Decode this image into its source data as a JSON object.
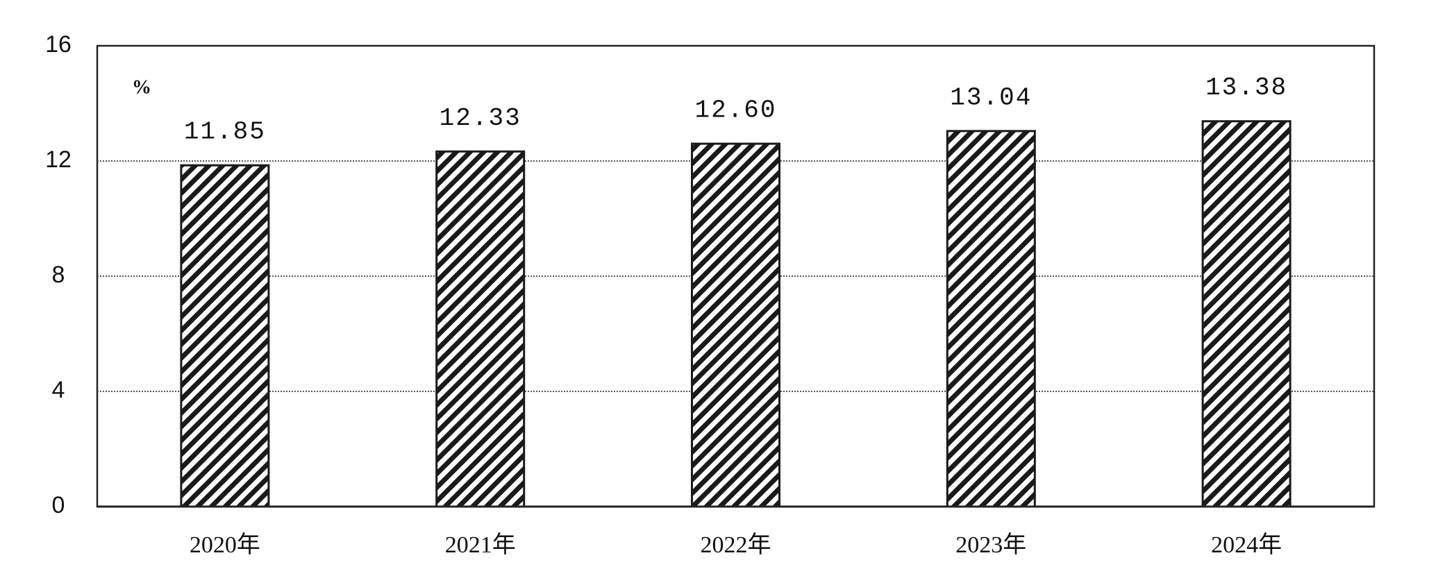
{
  "chart_data": {
    "type": "bar",
    "unit": "%",
    "categories": [
      "2020年",
      "2021年",
      "2022年",
      "2023年",
      "2024年"
    ],
    "values": [
      11.85,
      12.33,
      12.6,
      13.04,
      13.38
    ],
    "value_labels": [
      "11.85",
      "12.33",
      "12.60",
      "13.04",
      "13.38"
    ],
    "color": "#1a1a1a",
    "ylim": [
      0,
      16
    ],
    "yticks": [
      0,
      4,
      8,
      12,
      16
    ],
    "grid": true
  }
}
